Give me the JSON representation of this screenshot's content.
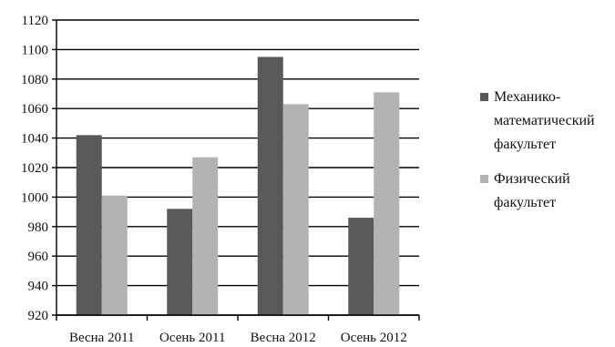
{
  "chart_data": {
    "type": "bar",
    "categories": [
      "Весна 2011",
      "Осень 2011",
      "Весна 2012",
      "Осень 2012"
    ],
    "series": [
      {
        "name": "Механико-\nматематический\nфакультет",
        "values": [
          1042,
          992,
          1095,
          986
        ],
        "color": "#595959"
      },
      {
        "name": "Физический\nфакультет",
        "values": [
          1001,
          1027,
          1063,
          1071
        ],
        "color": "#b3b3b3"
      }
    ],
    "ylim": [
      920,
      1120
    ],
    "yticks": [
      "920",
      "940",
      "960",
      "980",
      "1000",
      "1020",
      "1040",
      "1060",
      "1080",
      "1100",
      "1120"
    ],
    "grid": true,
    "legend_position": "right",
    "title": "",
    "xlabel": "",
    "ylabel": ""
  }
}
